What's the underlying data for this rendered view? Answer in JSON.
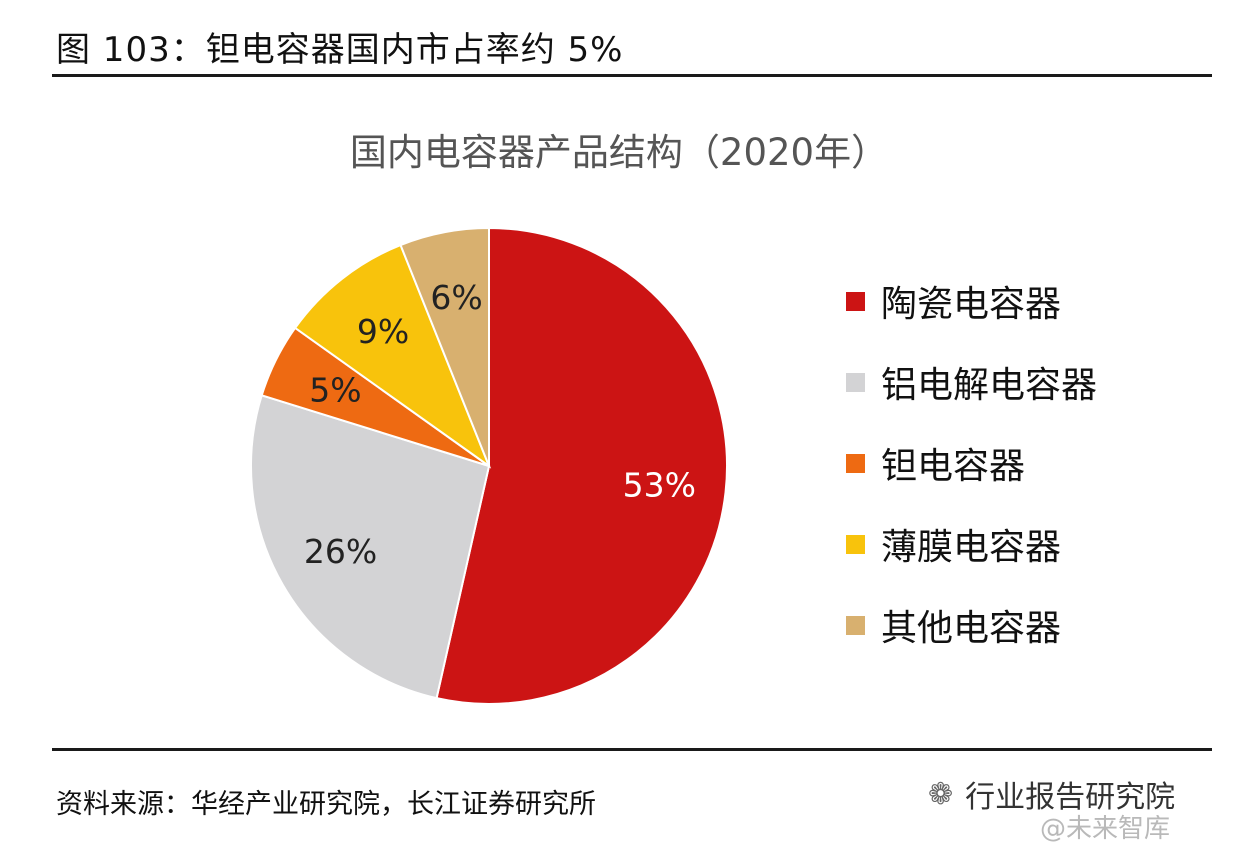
{
  "figure": {
    "title": "图 103：钽电容器国内市占率约 5%"
  },
  "chart_data": {
    "type": "pie",
    "title": "国内电容器产品结构（2020年）",
    "slices": [
      {
        "label": "陶瓷电容器",
        "value": 53,
        "display": "53%",
        "color": "#CC1414",
        "label_color": "#ffffff"
      },
      {
        "label": "铝电解电容器",
        "value": 26,
        "display": "26%",
        "color": "#D3D3D5",
        "label_color": "#222222"
      },
      {
        "label": "钽电容器",
        "value": 5,
        "display": "5%",
        "color": "#EE6A12",
        "label_color": "#222222"
      },
      {
        "label": "薄膜电容器",
        "value": 9,
        "display": "9%",
        "color": "#F8C30C",
        "label_color": "#222222"
      },
      {
        "label": "其他电容器",
        "value": 6,
        "display": "6%",
        "color": "#D8B06F",
        "label_color": "#222222"
      }
    ],
    "start": "12 o'clock",
    "direction": "clockwise",
    "legend_position": "right"
  },
  "source": {
    "text": "资料来源：华经产业研究院，长江证券研究所"
  },
  "watermark": {
    "icon": "wechat-icon",
    "text": "行业报告研究院",
    "subtext": "@未来智库"
  }
}
